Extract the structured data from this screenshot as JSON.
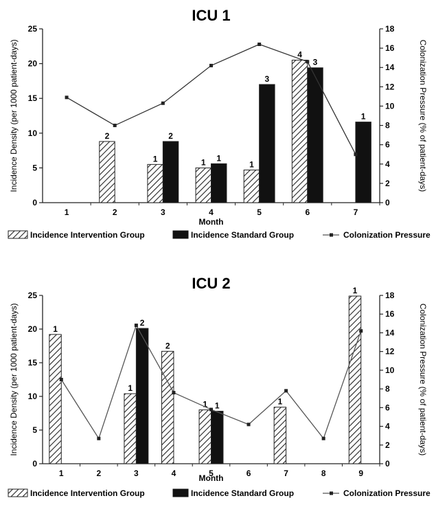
{
  "chart_data": [
    {
      "type": "bar",
      "title": "ICU 1",
      "xlabel": "Month",
      "ylabel": "Incidence Density (per 1000 patient-days)",
      "y2label": "Colonization Pressure (% of patient-days)",
      "categories": [
        "1",
        "2",
        "3",
        "4",
        "5",
        "6",
        "7"
      ],
      "ylim": [
        0,
        25
      ],
      "yticks": [
        0,
        5,
        10,
        15,
        20,
        25
      ],
      "y2lim": [
        0,
        18
      ],
      "y2ticks": [
        0,
        2,
        4,
        6,
        8,
        10,
        12,
        14,
        16,
        18
      ],
      "grid": false,
      "legend_position": "bottom",
      "series": [
        {
          "name": "Incidence Intervention Group",
          "kind": "bar",
          "pattern": "hatched",
          "axis": "left",
          "values": [
            null,
            8.8,
            5.5,
            5.0,
            4.7,
            20.5,
            null
          ],
          "labels": [
            "",
            "2",
            "1",
            "1",
            "1",
            "4",
            ""
          ]
        },
        {
          "name": "Incidence Standard Group",
          "kind": "bar",
          "color": "#111111",
          "axis": "left",
          "values": [
            null,
            null,
            8.8,
            5.6,
            17.0,
            19.4,
            11.6
          ],
          "labels": [
            "",
            "",
            "2",
            "1",
            "3",
            "3",
            "1"
          ]
        },
        {
          "name": "Colonization Pressure",
          "kind": "line",
          "color": "#333333",
          "axis": "right",
          "values": [
            10.9,
            8.0,
            10.3,
            14.2,
            16.4,
            14.6,
            5.0
          ]
        }
      ]
    },
    {
      "type": "bar",
      "title": "ICU 2",
      "xlabel": "Month",
      "ylabel": "Incidence Density (per 1000 patient-days)",
      "y2label": "Colonization Pressure (% of patient-days)",
      "categories": [
        "1",
        "2",
        "3",
        "4",
        "5",
        "6",
        "7",
        "8",
        "9"
      ],
      "ylim": [
        0,
        25
      ],
      "yticks": [
        0,
        5,
        10,
        15,
        20,
        25
      ],
      "y2lim": [
        0,
        18
      ],
      "y2ticks": [
        0,
        2,
        4,
        6,
        8,
        10,
        12,
        14,
        16,
        18
      ],
      "grid": false,
      "legend_position": "bottom",
      "series": [
        {
          "name": "Incidence Intervention Group",
          "kind": "bar",
          "pattern": "hatched",
          "axis": "left",
          "values": [
            19.2,
            null,
            10.4,
            16.7,
            8.0,
            null,
            8.4,
            null,
            24.9
          ],
          "labels": [
            "1",
            "",
            "1",
            "2",
            "1",
            "",
            "1",
            "",
            "1"
          ]
        },
        {
          "name": "Incidence Standard Group",
          "kind": "bar",
          "color": "#111111",
          "axis": "left",
          "values": [
            null,
            null,
            20.1,
            null,
            7.8,
            null,
            null,
            null,
            null
          ],
          "labels": [
            "",
            "",
            "2",
            "",
            "1",
            "",
            "",
            "",
            ""
          ]
        },
        {
          "name": "Colonization Pressure",
          "kind": "line",
          "color": "#555555",
          "axis": "right",
          "values": [
            9.0,
            2.7,
            14.8,
            7.6,
            5.8,
            4.2,
            7.8,
            2.7,
            14.2
          ]
        }
      ]
    }
  ]
}
